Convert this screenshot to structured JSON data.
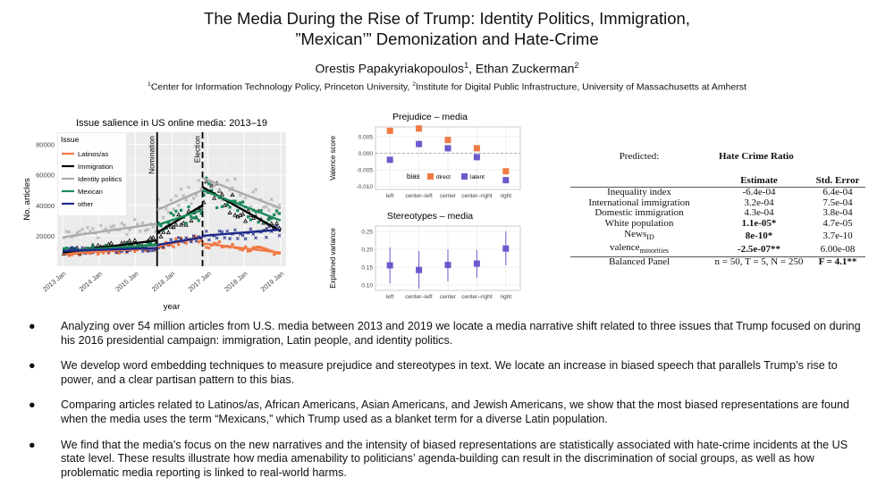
{
  "paper": {
    "title_line1": "The Media During the Rise of Trump: Identity Politics, Immigration,",
    "title_line2": "”Mexican’” Demonization and Hate-Crime",
    "author1": "Orestis Papakyriakopoulos",
    "author1_sup": "1",
    "author_sep": ", ",
    "author2": "Ethan Zuckerman",
    "author2_sup": "2",
    "affil1_sup": "1",
    "affil1": "Center for Information Technology Policy, Princeton University, ",
    "affil2_sup": "2",
    "affil2": "Institute for Digital Public Infrastructure, University of Massachusetts at Amherst"
  },
  "chart_data": [
    {
      "type": "scatter",
      "title": "Issue salience in US online media: 2013–19",
      "xlabel": "year",
      "ylabel": "No. articles",
      "x_ticks": [
        "2013 Jan",
        "2014 Jan",
        "2015 Jan",
        "2016 Jan",
        "2017 Jan",
        "2018 Jan",
        "2019 Jan"
      ],
      "y_ticks": [
        20000,
        40000,
        60000,
        80000
      ],
      "ylim": [
        0,
        88000
      ],
      "xlim": [
        2012.85,
        2019.15
      ],
      "legend_title": "Issue",
      "legend_position": "top-left",
      "grid": true,
      "vlines": [
        {
          "x": 2015.6,
          "label": "Nomination",
          "style": "solid"
        },
        {
          "x": 2016.85,
          "label": "Election",
          "style": "dashed"
        }
      ],
      "series": [
        {
          "name": "Latinos/as",
          "color": "#f07a45",
          "marker": "square",
          "segments": [
            [
              [
                2013,
                8000
              ],
              [
                2015.6,
                12000
              ]
            ],
            [
              [
                2015.6,
                13000
              ],
              [
                2016.85,
                19000
              ]
            ],
            [
              [
                2016.85,
                15000
              ],
              [
                2019,
                9000
              ]
            ]
          ]
        },
        {
          "name": "Immigration",
          "color": "#000000",
          "marker": "triangle",
          "segments": [
            [
              [
                2013,
                9000
              ],
              [
                2015.6,
                17000
              ]
            ],
            [
              [
                2015.6,
                22000
              ],
              [
                2016.85,
                40000
              ]
            ],
            [
              [
                2016.85,
                52000
              ],
              [
                2019,
                23000
              ]
            ]
          ]
        },
        {
          "name": "Identity politics",
          "color": "#aaaaaa",
          "marker": "x",
          "segments": [
            [
              [
                2013,
                19000
              ],
              [
                2015.6,
                28000
              ]
            ],
            [
              [
                2015.6,
                37000
              ],
              [
                2016.85,
                50000
              ]
            ],
            [
              [
                2016.85,
                58000
              ],
              [
                2019,
                38000
              ]
            ]
          ]
        },
        {
          "name": "Mexican",
          "color": "#1a8a5a",
          "marker": "square",
          "segments": [
            [
              [
                2013,
                10000
              ],
              [
                2015.6,
                14000
              ]
            ],
            [
              [
                2015.6,
                27000
              ],
              [
                2016.85,
                37000
              ]
            ],
            [
              [
                2016.85,
                50000
              ],
              [
                2019,
                30000
              ]
            ]
          ]
        },
        {
          "name": "other",
          "color": "#1c2a8a",
          "marker": "x",
          "segments": [
            [
              [
                2013,
                10000
              ],
              [
                2015.6,
                12000
              ]
            ],
            [
              [
                2015.6,
                14000
              ],
              [
                2016.85,
                19000
              ]
            ],
            [
              [
                2016.85,
                20000
              ],
              [
                2019,
                24000
              ]
            ]
          ]
        }
      ]
    },
    {
      "type": "scatter",
      "title": "Prejudice – media",
      "ylabel": "Valence score",
      "categories": [
        "left",
        "center–left",
        "center",
        "center–right",
        "right"
      ],
      "ylim": [
        -0.011,
        0.008
      ],
      "y_ticks": [
        "-0.010",
        "-0.005",
        "0.000",
        "0.005"
      ],
      "y_tick_values": [
        -0.01,
        -0.005,
        0,
        0.005
      ],
      "legend_title": "bias",
      "legend_position": "bottom",
      "series": [
        {
          "name": "direct",
          "color": "#f07a45",
          "values": [
            0.0068,
            0.0075,
            0.004,
            0.0015,
            -0.0055
          ]
        },
        {
          "name": "latent",
          "color": "#6a5acd",
          "values": [
            -0.002,
            0.0028,
            0.0015,
            -0.0012,
            -0.0082
          ]
        }
      ]
    },
    {
      "type": "scatter",
      "title": "Stereotypes – media",
      "ylabel": "Explained variance",
      "categories": [
        "left",
        "center–left",
        "center",
        "center–right",
        "right"
      ],
      "ylim": [
        0.085,
        0.265
      ],
      "y_ticks": [
        "0.10",
        "0.15",
        "0.20",
        "0.25"
      ],
      "y_tick_values": [
        0.1,
        0.15,
        0.2,
        0.25
      ],
      "series": [
        {
          "name": "",
          "color": "#6a5acd",
          "values": [
            0.155,
            0.142,
            0.156,
            0.16,
            0.202
          ],
          "lower": [
            0.105,
            0.09,
            0.11,
            0.12,
            0.155
          ],
          "upper": [
            0.205,
            0.195,
            0.2,
            0.198,
            0.25
          ]
        }
      ]
    },
    {
      "type": "table",
      "predicted_label": "Predicted:",
      "dependent_label": "Hate Crime Ratio",
      "columns": [
        "",
        "Estimate",
        "Std. Error"
      ],
      "rows": [
        {
          "name": "Inequality index",
          "sub": "",
          "estimate": "-6.4e-04",
          "se": "6.4e-04",
          "bold": false
        },
        {
          "name": "International immigration",
          "sub": "",
          "estimate": "3.2e-04",
          "se": "7.5e-04",
          "bold": false
        },
        {
          "name": "Domestic immigration",
          "sub": "",
          "estimate": "4.3e-04",
          "se": "3.8e-04",
          "bold": false
        },
        {
          "name": "White population",
          "sub": "",
          "estimate": "1.1e-05*",
          "se": "4.7e-05",
          "bold": true
        },
        {
          "name": "News",
          "sub": "ID",
          "estimate": "8e-10*",
          "se": "3.7e-10",
          "bold": true
        },
        {
          "name": "valence",
          "sub": "minorities",
          "estimate": "-2.5e-07**",
          "se": "6.00e-08",
          "bold": true
        }
      ],
      "footer": {
        "label": "Balanced Panel",
        "estimate": "n = 50, T = 5, N = 250",
        "se": "F = 4.1**"
      }
    }
  ],
  "bullets": [
    "Analyzing over 54 million articles from U.S. media between 2013 and 2019 we locate a media narrative shift related to three issues that Trump focused on during his 2016 presidential campaign: immigration, Latin people, and identity politics.",
    "We develop word embedding techniques to measure prejudice and stereotypes in text. We locate an increase in biased speech that parallels Trump’s rise to power, and a clear partisan pattern to this bias.",
    "Comparing articles related to Latinos/as, African Americans, Asian Americans, and Jewish Americans, we show that the most biased representations are found when the media uses the term “Mexicans,” which Trump used as a blanket term for a diverse Latin population.",
    "We find that the media’s focus on the new narratives and the intensity of biased representations are statistically associated with hate-crime incidents at the US state level. These results illustrate how media amenability to politicians’ agenda-building can result in the discrimination of social groups, as well as how problematic media reporting is linked to real-world harms."
  ],
  "bullet_symbol": "●"
}
